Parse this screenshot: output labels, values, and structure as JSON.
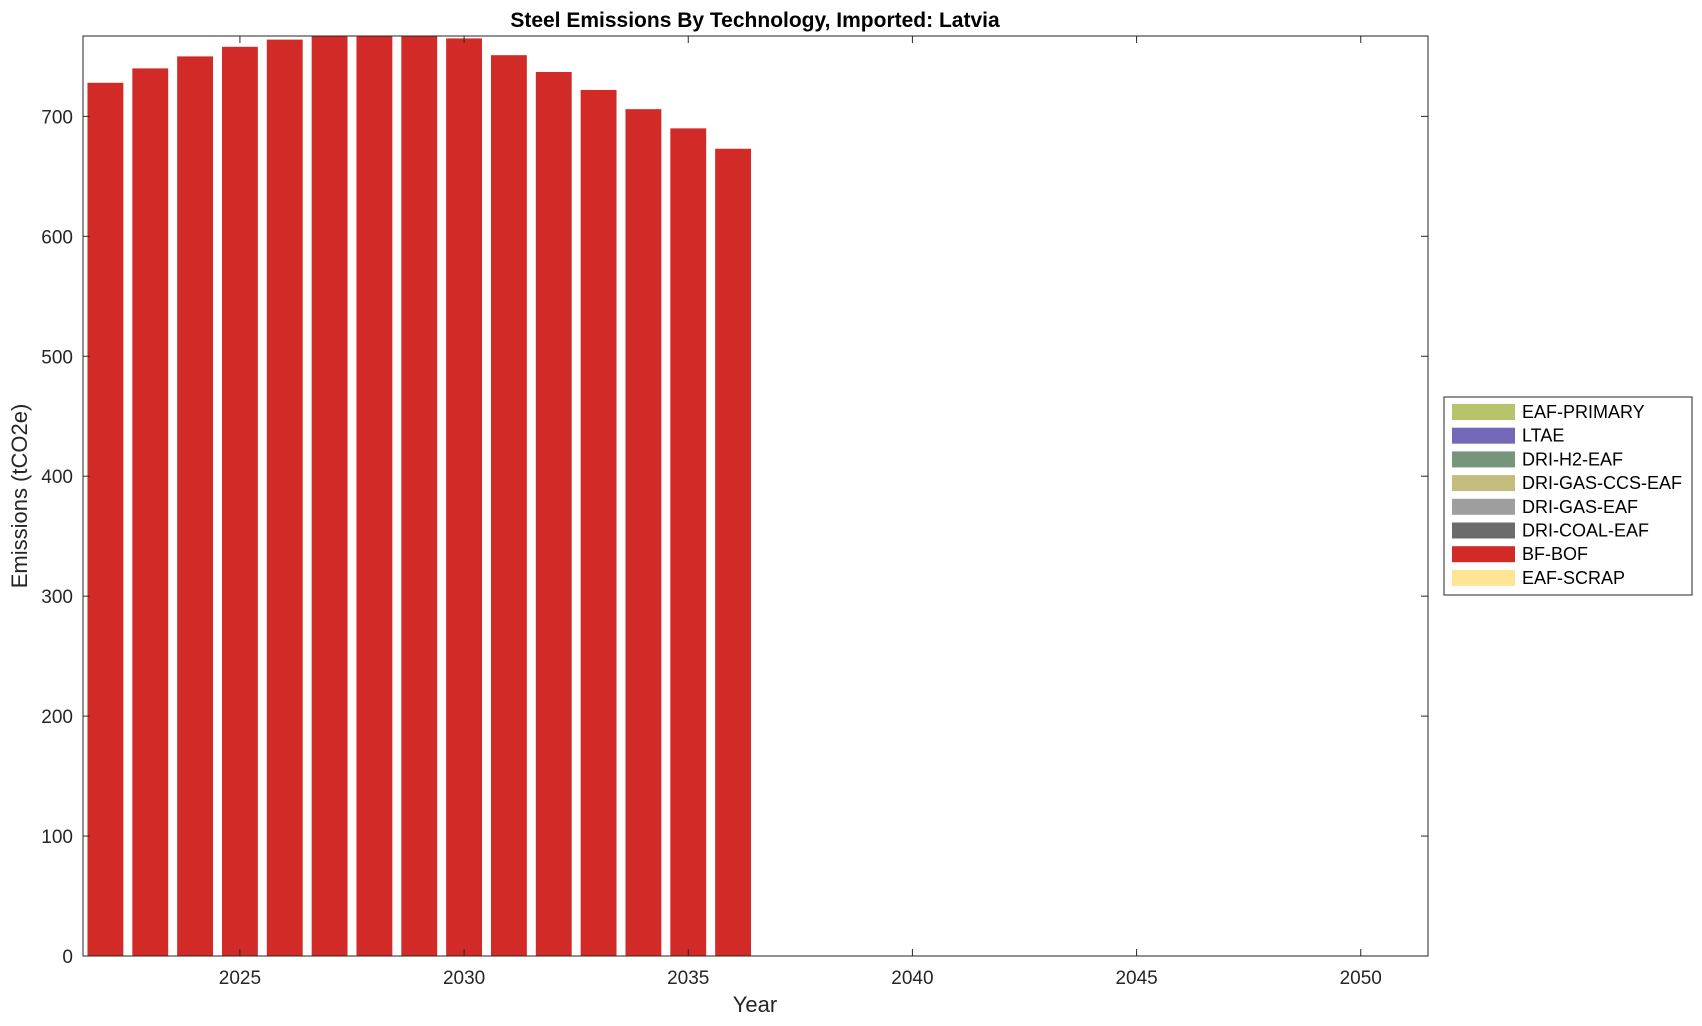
{
  "chart_data": {
    "type": "bar",
    "stacked": true,
    "title": "Steel Emissions By Technology, Imported: Latvia",
    "xlabel": "Year",
    "ylabel": "Emissions (tCO2e)",
    "xlim": [
      2021.5,
      2051.5
    ],
    "ylim": [
      0,
      767
    ],
    "xticks": [
      2025,
      2030,
      2035,
      2040,
      2045,
      2050
    ],
    "yticks": [
      0,
      100,
      200,
      300,
      400,
      500,
      600,
      700
    ],
    "grid": false,
    "legend_position": "right, outside plot area",
    "x": [
      2022,
      2023,
      2024,
      2025,
      2026,
      2027,
      2028,
      2029,
      2030,
      2031,
      2032,
      2033,
      2034,
      2035,
      2036
    ],
    "series": [
      {
        "name": "EAF-PRIMARY",
        "color": "#b8c46a",
        "values": [
          0,
          0,
          0,
          0,
          0,
          0,
          0,
          0,
          0,
          0,
          0,
          0,
          0,
          0,
          0
        ]
      },
      {
        "name": "LTAE",
        "color": "#7469b8",
        "values": [
          0,
          0,
          0,
          0,
          0,
          0,
          0,
          0,
          0,
          0,
          0,
          0,
          0,
          0,
          0
        ]
      },
      {
        "name": "DRI-H2-EAF",
        "color": "#76957a",
        "values": [
          0,
          0,
          0,
          0,
          0,
          0,
          0,
          0,
          0,
          0,
          0,
          0,
          0,
          0,
          0
        ]
      },
      {
        "name": "DRI-GAS-CCS-EAF",
        "color": "#c4bd7e",
        "values": [
          0,
          0,
          0,
          0,
          0,
          0,
          0,
          0,
          0,
          0,
          0,
          0,
          0,
          0,
          0
        ]
      },
      {
        "name": "DRI-GAS-EAF",
        "color": "#9e9e9e",
        "values": [
          0,
          0,
          0,
          0,
          0,
          0,
          0,
          0,
          0,
          0,
          0,
          0,
          0,
          0,
          0
        ]
      },
      {
        "name": "DRI-COAL-EAF",
        "color": "#6b6b6b",
        "values": [
          0,
          0,
          0,
          0,
          0,
          0,
          0,
          0,
          0,
          0,
          0,
          0,
          0,
          0,
          0
        ]
      },
      {
        "name": "BF-BOF",
        "color": "#d22b27",
        "values": [
          728,
          740,
          750,
          758,
          764,
          775,
          778,
          775,
          765,
          751,
          737,
          722,
          706,
          690,
          673
        ]
      },
      {
        "name": "EAF-SCRAP",
        "color": "#fde594",
        "values": [
          0,
          0,
          0,
          0,
          0,
          0,
          0,
          0,
          0,
          0,
          0,
          0,
          0,
          0,
          0
        ]
      }
    ]
  }
}
